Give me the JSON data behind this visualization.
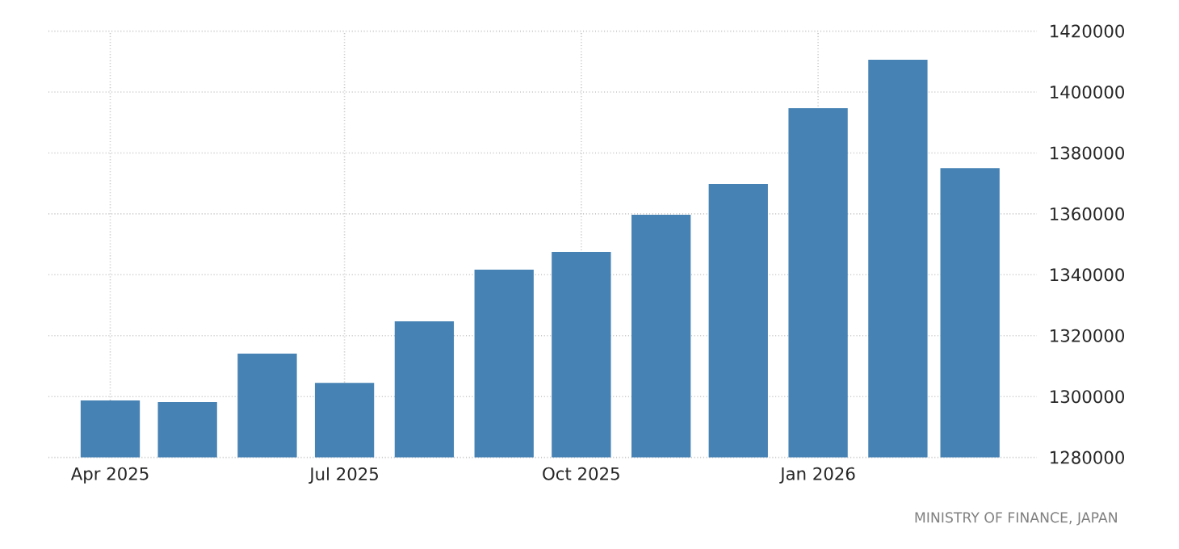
{
  "chart_data": {
    "type": "bar",
    "x": [
      "2025-04",
      "2025-05",
      "2025-06",
      "2025-07",
      "2025-08",
      "2025-09",
      "2025-10",
      "2025-11",
      "2025-12",
      "2026-01",
      "2026-02",
      "2026-03"
    ],
    "values": [
      1298700,
      1298200,
      1314100,
      1304500,
      1324700,
      1341700,
      1347500,
      1359700,
      1369800,
      1394700,
      1410600,
      1375000
    ],
    "color": "#4682b4",
    "xlim": [
      "2025-03-08",
      "2026-03-27"
    ],
    "xticks": [
      {
        "value": "2025-04",
        "label": "Apr 2025"
      },
      {
        "value": "2025-07",
        "label": "Jul 2025"
      },
      {
        "value": "2025-10",
        "label": "Oct 2025"
      },
      {
        "value": "2026-01",
        "label": "Jan 2026"
      }
    ],
    "ylim": [
      1280000,
      1420000
    ],
    "yticks": [
      1280000,
      1300000,
      1320000,
      1340000,
      1360000,
      1380000,
      1400000,
      1420000
    ],
    "grid": true,
    "annotations": [
      "MINISTRY OF FINANCE, JAPAN"
    ]
  }
}
